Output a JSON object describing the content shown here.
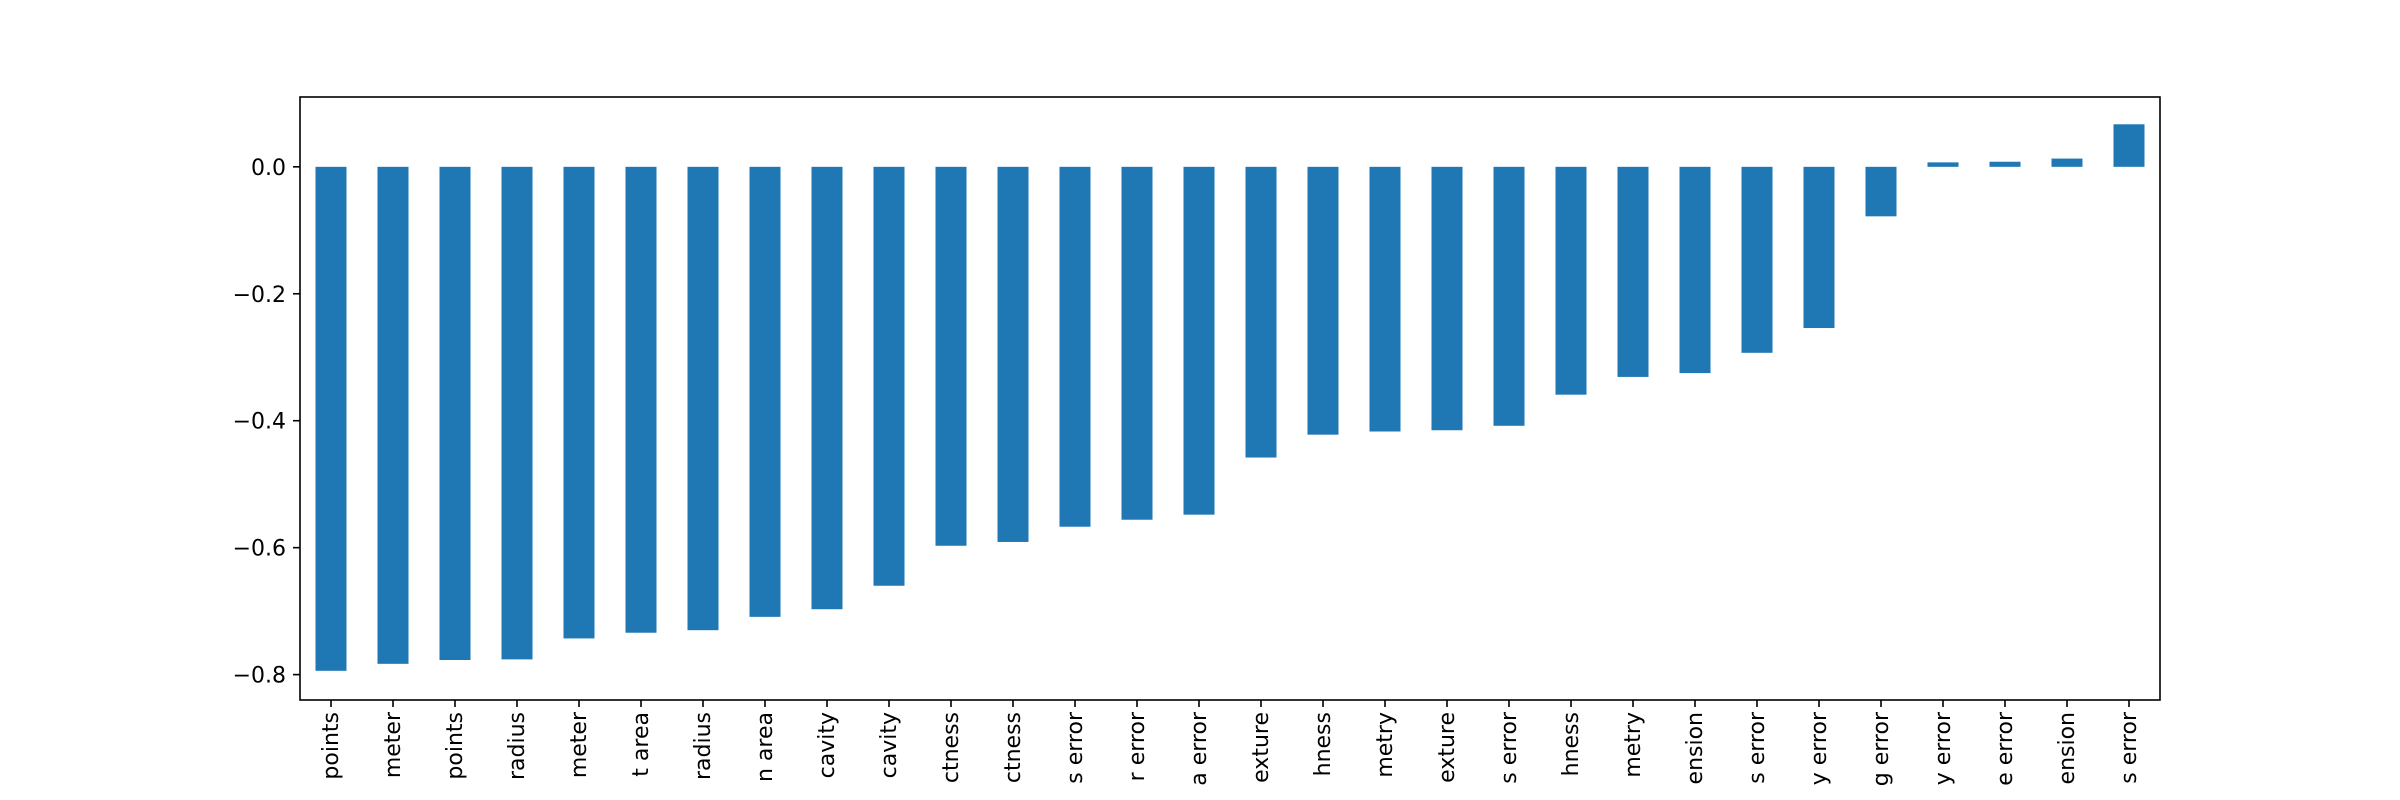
{
  "chart_data": {
    "type": "bar",
    "title": "",
    "xlabel": "",
    "ylabel": "",
    "ylim": [
      -0.84,
      0.11
    ],
    "yticks": [
      0.0,
      -0.2,
      -0.4,
      -0.6,
      -0.8
    ],
    "ytick_labels": [
      "0.0",
      "−0.2",
      "−0.4",
      "−0.6",
      "−0.8"
    ],
    "grid": false,
    "legend": "none",
    "bar_color": "#1f77b4",
    "categories": [
      "points",
      "meter",
      "points",
      "radius",
      "meter",
      "t area",
      "radius",
      "n area",
      "cavity",
      "cavity",
      "ctness",
      "ctness",
      "s error",
      "r error",
      "a error",
      "exture",
      "hness",
      "metry",
      "exture",
      "s error",
      "hness",
      "metry",
      "ension",
      "s error",
      "y error",
      "g error",
      "y error",
      "e error",
      "ension",
      "s error"
    ],
    "values": [
      -0.794,
      -0.783,
      -0.777,
      -0.776,
      -0.743,
      -0.734,
      -0.73,
      -0.709,
      -0.697,
      -0.66,
      -0.597,
      -0.591,
      -0.567,
      -0.556,
      -0.548,
      -0.458,
      -0.422,
      -0.417,
      -0.415,
      -0.408,
      -0.359,
      -0.331,
      -0.325,
      -0.293,
      -0.254,
      -0.078,
      0.007,
      0.008,
      0.013,
      0.067
    ]
  }
}
